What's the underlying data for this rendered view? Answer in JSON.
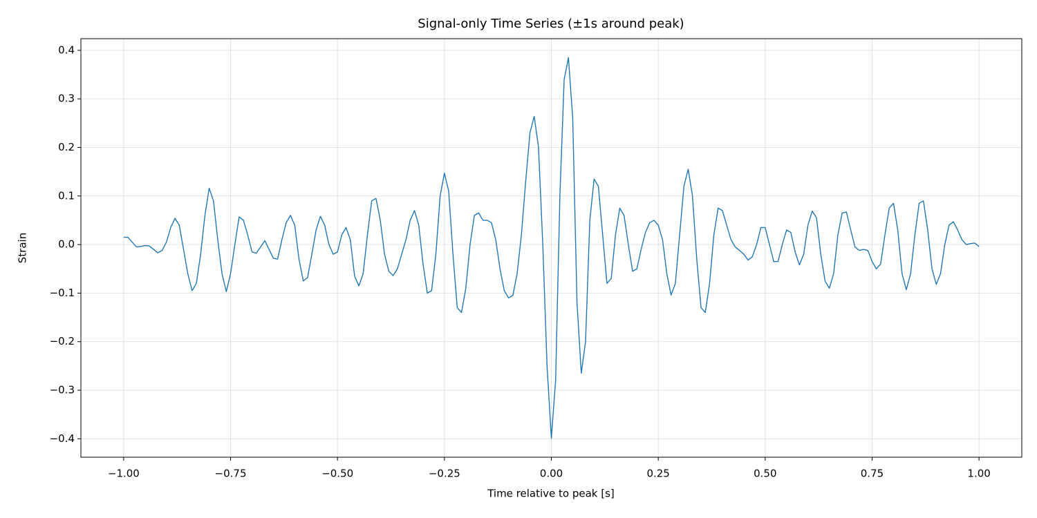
{
  "chart_data": {
    "type": "line",
    "title": "Signal-only Time Series (±1s around peak)",
    "xlabel": "Time relative to peak [s]",
    "ylabel": "Strain",
    "grid": true,
    "xlim": [
      -1.1,
      1.1
    ],
    "ylim": [
      -0.438,
      0.424
    ],
    "xticks": [
      {
        "value": -1,
        "label": "−1.00"
      },
      {
        "value": -0.75,
        "label": "−0.75"
      },
      {
        "value": -0.5,
        "label": "−0.50"
      },
      {
        "value": -0.25,
        "label": "−0.25"
      },
      {
        "value": 0,
        "label": "0.00"
      },
      {
        "value": 0.25,
        "label": "0.25"
      },
      {
        "value": 0.5,
        "label": "0.50"
      },
      {
        "value": 0.75,
        "label": "0.75"
      },
      {
        "value": 1,
        "label": "1.00"
      }
    ],
    "yticks": [
      {
        "value": -0.4,
        "label": "−0.4"
      },
      {
        "value": -0.3,
        "label": "−0.3"
      },
      {
        "value": -0.2,
        "label": "−0.2"
      },
      {
        "value": -0.1,
        "label": "−0.1"
      },
      {
        "value": 0,
        "label": "0.0"
      },
      0.1,
      0.2,
      0.3,
      0.4
    ],
    "x": [
      -1.0,
      -0.99,
      -0.98,
      -0.97,
      -0.96,
      -0.95,
      -0.94,
      -0.93,
      -0.92,
      -0.91,
      -0.9,
      -0.89,
      -0.88,
      -0.87,
      -0.86,
      -0.85,
      -0.84,
      -0.83,
      -0.82,
      -0.81,
      -0.8,
      -0.79,
      -0.78,
      -0.77,
      -0.76,
      -0.75,
      -0.74,
      -0.73,
      -0.72,
      -0.71,
      -0.7,
      -0.69,
      -0.68,
      -0.67,
      -0.66,
      -0.65,
      -0.64,
      -0.63,
      -0.62,
      -0.61,
      -0.6,
      -0.59,
      -0.58,
      -0.57,
      -0.56,
      -0.55,
      -0.54,
      -0.53,
      -0.52,
      -0.51,
      -0.5,
      -0.49,
      -0.48,
      -0.47,
      -0.46,
      -0.45,
      -0.44,
      -0.43,
      -0.42,
      -0.41,
      -0.4,
      -0.39,
      -0.38,
      -0.37,
      -0.36,
      -0.35,
      -0.34,
      -0.33,
      -0.32,
      -0.31,
      -0.3,
      -0.29,
      -0.28,
      -0.27,
      -0.26,
      -0.25,
      -0.24,
      -0.23,
      -0.22,
      -0.21,
      -0.2,
      -0.19,
      -0.18,
      -0.17,
      -0.16,
      -0.15,
      -0.14,
      -0.13,
      -0.12,
      -0.11,
      -0.1,
      -0.09,
      -0.08,
      -0.07,
      -0.06,
      -0.05,
      -0.04,
      -0.03,
      -0.02,
      -0.01,
      0.0,
      0.01,
      0.02,
      0.03,
      0.04,
      0.05,
      0.06,
      0.07,
      0.08,
      0.09,
      0.1,
      0.11,
      0.12,
      0.13,
      0.14,
      0.15,
      0.16,
      0.17,
      0.18,
      0.19,
      0.2,
      0.21,
      0.22,
      0.23,
      0.24,
      0.25,
      0.26,
      0.27,
      0.28,
      0.29,
      0.3,
      0.31,
      0.32,
      0.33,
      0.34,
      0.35,
      0.36,
      0.37,
      0.38,
      0.39,
      0.4,
      0.41,
      0.42,
      0.43,
      0.44,
      0.45,
      0.46,
      0.47,
      0.48,
      0.49,
      0.5,
      0.51,
      0.52,
      0.53,
      0.54,
      0.55,
      0.56,
      0.57,
      0.58,
      0.59,
      0.6,
      0.61,
      0.62,
      0.63,
      0.64,
      0.65,
      0.66,
      0.67,
      0.68,
      0.69,
      0.7,
      0.71,
      0.72,
      0.73,
      0.74,
      0.75,
      0.76,
      0.77,
      0.78,
      0.79,
      0.8,
      0.81,
      0.82,
      0.83,
      0.84,
      0.85,
      0.86,
      0.87,
      0.88,
      0.89,
      0.9,
      0.91,
      0.92,
      0.93,
      0.94,
      0.95,
      0.96,
      0.97,
      0.98,
      0.99,
      1.0
    ],
    "series": [
      {
        "color": "#1f77b4",
        "values": [
          0.015,
          0.015,
          0.005,
          -0.005,
          -0.004,
          -0.002,
          -0.003,
          -0.01,
          -0.017,
          -0.012,
          0.005,
          0.035,
          0.054,
          0.04,
          -0.01,
          -0.06,
          -0.095,
          -0.08,
          -0.02,
          0.06,
          0.116,
          0.09,
          0.01,
          -0.06,
          -0.097,
          -0.06,
          0.0,
          0.057,
          0.05,
          0.02,
          -0.015,
          -0.018,
          -0.005,
          0.008,
          -0.01,
          -0.028,
          -0.03,
          0.01,
          0.045,
          0.06,
          0.04,
          -0.03,
          -0.075,
          -0.068,
          -0.02,
          0.03,
          0.058,
          0.04,
          0.0,
          -0.02,
          -0.015,
          0.02,
          0.035,
          0.01,
          -0.065,
          -0.085,
          -0.06,
          0.02,
          0.09,
          0.095,
          0.05,
          -0.02,
          -0.055,
          -0.064,
          -0.05,
          -0.02,
          0.01,
          0.05,
          0.07,
          0.04,
          -0.04,
          -0.1,
          -0.095,
          -0.02,
          0.1,
          0.147,
          0.11,
          -0.02,
          -0.13,
          -0.14,
          -0.09,
          0.0,
          0.06,
          0.065,
          0.05,
          0.05,
          0.045,
          0.01,
          -0.05,
          -0.095,
          -0.11,
          -0.105,
          -0.06,
          0.02,
          0.13,
          0.23,
          0.264,
          0.2,
          0.0,
          -0.25,
          -0.399,
          -0.28,
          0.1,
          0.34,
          0.385,
          0.26,
          -0.12,
          -0.265,
          -0.2,
          0.05,
          0.135,
          0.12,
          0.02,
          -0.08,
          -0.07,
          0.02,
          0.075,
          0.06,
          0.0,
          -0.055,
          -0.05,
          -0.01,
          0.025,
          0.045,
          0.05,
          0.04,
          0.01,
          -0.06,
          -0.104,
          -0.08,
          0.02,
          0.12,
          0.155,
          0.1,
          -0.03,
          -0.13,
          -0.14,
          -0.08,
          0.02,
          0.075,
          0.07,
          0.04,
          0.01,
          -0.005,
          -0.012,
          -0.02,
          -0.032,
          -0.025,
          0.0,
          0.035,
          0.035,
          0.0,
          -0.035,
          -0.035,
          0.0,
          0.03,
          0.025,
          -0.015,
          -0.042,
          -0.02,
          0.04,
          0.069,
          0.055,
          -0.02,
          -0.075,
          -0.09,
          -0.06,
          0.02,
          0.065,
          0.067,
          0.03,
          -0.005,
          -0.012,
          -0.01,
          -0.012,
          -0.035,
          -0.05,
          -0.04,
          0.02,
          0.075,
          0.085,
          0.03,
          -0.06,
          -0.093,
          -0.06,
          0.02,
          0.085,
          0.09,
          0.03,
          -0.05,
          -0.082,
          -0.06,
          0.0,
          0.04,
          0.047,
          0.03,
          0.01,
          0.0,
          0.002,
          0.003,
          -0.004
        ]
      }
    ]
  }
}
